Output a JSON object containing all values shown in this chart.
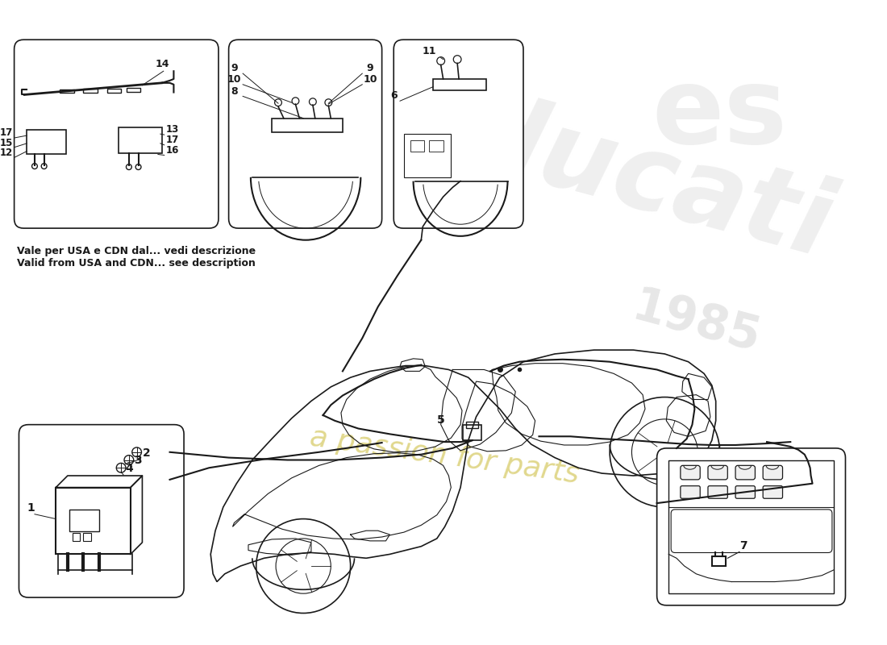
{
  "bg_color": "#ffffff",
  "line_color": "#1a1a1a",
  "note_line1": "Vale per USA e CDN dal... vedi descrizione",
  "note_line2": "Valid from USA and CDN... see description",
  "watermark_color": "#cccccc",
  "watermark_yellow": "#d4c84a",
  "fig_w": 11.0,
  "fig_h": 8.0,
  "dpi": 100
}
